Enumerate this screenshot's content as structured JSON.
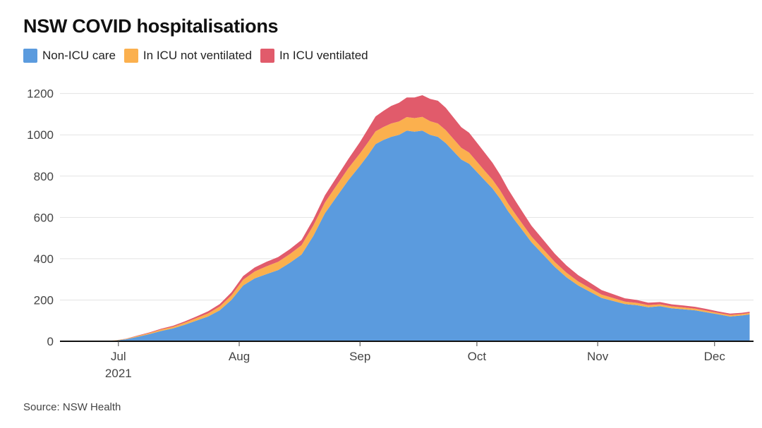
{
  "chart_data": {
    "type": "area",
    "stacked": true,
    "title": "NSW COVID hospitalisations",
    "source": "Source: NSW Health",
    "legend_placement": "top-left",
    "grid": true,
    "xlabel": "",
    "ylabel": "",
    "ylim": [
      0,
      1250
    ],
    "yticks": [
      0,
      200,
      400,
      600,
      800,
      1000,
      1200
    ],
    "xlim": [
      "2021-06-16",
      "2021-12-11"
    ],
    "xticks": [
      {
        "date": "2021-07-01",
        "label": "Jul",
        "sublabel": "2021"
      },
      {
        "date": "2021-08-01",
        "label": "Aug",
        "sublabel": ""
      },
      {
        "date": "2021-09-01",
        "label": "Sep",
        "sublabel": ""
      },
      {
        "date": "2021-10-01",
        "label": "Oct",
        "sublabel": ""
      },
      {
        "date": "2021-11-01",
        "label": "Nov",
        "sublabel": ""
      },
      {
        "date": "2021-12-01",
        "label": "Dec",
        "sublabel": ""
      }
    ],
    "x": [
      "2021-06-16",
      "2021-06-20",
      "2021-06-24",
      "2021-06-27",
      "2021-06-30",
      "2021-07-03",
      "2021-07-06",
      "2021-07-09",
      "2021-07-12",
      "2021-07-15",
      "2021-07-18",
      "2021-07-21",
      "2021-07-24",
      "2021-07-27",
      "2021-07-30",
      "2021-08-02",
      "2021-08-05",
      "2021-08-08",
      "2021-08-11",
      "2021-08-14",
      "2021-08-17",
      "2021-08-20",
      "2021-08-23",
      "2021-08-26",
      "2021-08-29",
      "2021-09-01",
      "2021-09-03",
      "2021-09-05",
      "2021-09-07",
      "2021-09-09",
      "2021-09-11",
      "2021-09-13",
      "2021-09-15",
      "2021-09-17",
      "2021-09-19",
      "2021-09-21",
      "2021-09-23",
      "2021-09-25",
      "2021-09-27",
      "2021-09-29",
      "2021-10-01",
      "2021-10-03",
      "2021-10-05",
      "2021-10-07",
      "2021-10-09",
      "2021-10-11",
      "2021-10-13",
      "2021-10-15",
      "2021-10-18",
      "2021-10-21",
      "2021-10-24",
      "2021-10-27",
      "2021-10-30",
      "2021-11-02",
      "2021-11-05",
      "2021-11-08",
      "2021-11-11",
      "2021-11-14",
      "2021-11-17",
      "2021-11-20",
      "2021-11-23",
      "2021-11-26",
      "2021-11-29",
      "2021-12-02",
      "2021-12-05",
      "2021-12-08",
      "2021-12-10"
    ],
    "series": [
      {
        "name": "Non-ICU care",
        "color": "#5b9bde",
        "values": [
          0,
          0,
          0,
          1,
          3,
          10,
          22,
          35,
          50,
          62,
          80,
          100,
          120,
          150,
          200,
          270,
          305,
          325,
          345,
          380,
          420,
          510,
          620,
          700,
          780,
          850,
          900,
          955,
          975,
          990,
          1000,
          1020,
          1015,
          1020,
          1000,
          990,
          960,
          920,
          880,
          860,
          820,
          780,
          740,
          690,
          630,
          580,
          530,
          480,
          420,
          360,
          310,
          270,
          240,
          210,
          195,
          180,
          175,
          165,
          170,
          160,
          155,
          150,
          140,
          130,
          120,
          125,
          130
        ]
      },
      {
        "name": "In ICU not ventilated",
        "color": "#fbb04e",
        "values": [
          0,
          0,
          0,
          0,
          1,
          2,
          4,
          5,
          7,
          8,
          10,
          12,
          15,
          18,
          22,
          28,
          33,
          38,
          40,
          42,
          45,
          50,
          52,
          55,
          58,
          60,
          62,
          62,
          63,
          65,
          65,
          66,
          66,
          67,
          66,
          65,
          63,
          60,
          57,
          54,
          50,
          46,
          43,
          40,
          37,
          33,
          30,
          28,
          26,
          24,
          22,
          20,
          18,
          16,
          14,
          12,
          11,
          10,
          9,
          9,
          9,
          8,
          8,
          7,
          7,
          7,
          7
        ]
      },
      {
        "name": "In ICU ventilated",
        "color": "#e15b6b",
        "values": [
          0,
          0,
          0,
          0,
          0,
          1,
          2,
          3,
          4,
          5,
          6,
          8,
          10,
          12,
          15,
          18,
          20,
          22,
          23,
          24,
          26,
          30,
          35,
          40,
          45,
          55,
          65,
          72,
          78,
          85,
          90,
          95,
          100,
          105,
          108,
          110,
          108,
          104,
          100,
          96,
          92,
          88,
          82,
          76,
          70,
          64,
          58,
          52,
          46,
          40,
          35,
          30,
          26,
          22,
          19,
          16,
          14,
          12,
          11,
          10,
          9,
          9,
          8,
          7,
          7,
          6,
          6
        ]
      }
    ]
  }
}
